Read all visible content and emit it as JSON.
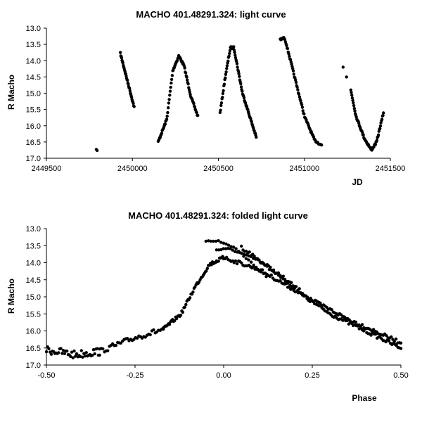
{
  "chart_data": [
    {
      "type": "scatter",
      "title": "MACHO 401.48291.324: light curve",
      "xlabel": "JD",
      "ylabel": "R Macho",
      "xlim": [
        2449500,
        2451500
      ],
      "ylim": [
        13.0,
        17.0
      ],
      "y_inverted": true,
      "grid": false,
      "xticks": [
        2449500,
        2450000,
        2450500,
        2451000,
        2451500
      ],
      "xtick_labels": [
        "2449500",
        "2450000",
        "2450500",
        "2451000",
        "2451500"
      ],
      "yticks": [
        13.0,
        13.5,
        14.0,
        14.5,
        15.0,
        15.5,
        16.0,
        16.5,
        17.0
      ],
      "ytick_labels": [
        "13.0",
        "13.5",
        "14.0",
        "14.5",
        "15.0",
        "15.5",
        "16.0",
        "16.5",
        "17.0"
      ],
      "segments": [
        {
          "kind": "points",
          "pts": [
            [
              2449790,
              16.73
            ],
            [
              2449795,
              16.76
            ]
          ]
        },
        {
          "kind": "poly",
          "start": 2449930,
          "end": 2450010,
          "n": 34,
          "x": [
            2449930,
            2450010
          ],
          "y": [
            13.78,
            15.42
          ]
        },
        {
          "kind": "poly",
          "start": 2450150,
          "end": 2450380,
          "n": 80,
          "x": [
            2450150,
            2450200,
            2450235,
            2450270,
            2450300,
            2450340,
            2450380
          ],
          "y": [
            16.5,
            15.8,
            14.3,
            13.85,
            14.15,
            15.1,
            15.7
          ]
        },
        {
          "kind": "poly",
          "start": 2450510,
          "end": 2450720,
          "n": 78,
          "x": [
            2450510,
            2450540,
            2450570,
            2450590,
            2450640,
            2450720
          ],
          "y": [
            15.6,
            14.5,
            13.6,
            13.6,
            15.0,
            16.35
          ]
        },
        {
          "kind": "poly",
          "start": 2450860,
          "end": 2451100,
          "n": 74,
          "x": [
            2450860,
            2450885,
            2450910,
            2451000,
            2451060,
            2451100
          ],
          "y": [
            13.35,
            13.3,
            13.8,
            15.7,
            16.45,
            16.6
          ]
        },
        {
          "kind": "points",
          "pts": [
            [
              2451225,
              14.2
            ],
            [
              2451245,
              14.5
            ]
          ]
        },
        {
          "kind": "poly",
          "start": 2451270,
          "end": 2451460,
          "n": 66,
          "x": [
            2451270,
            2451300,
            2451350,
            2451390,
            2451420,
            2451460
          ],
          "y": [
            14.9,
            15.7,
            16.4,
            16.75,
            16.5,
            15.6
          ]
        }
      ]
    },
    {
      "type": "scatter",
      "title": "MACHO 401.48291.324: folded light curve",
      "xlabel": "Phase",
      "ylabel": "R Macho",
      "xlim": [
        -0.5,
        0.5
      ],
      "ylim": [
        13.0,
        17.0
      ],
      "y_inverted": true,
      "grid": false,
      "xticks": [
        -0.5,
        -0.25,
        0.0,
        0.25,
        0.5
      ],
      "xtick_labels": [
        "-0.50",
        "-0.25",
        "0.00",
        "0.25",
        "0.50"
      ],
      "yticks": [
        13.0,
        13.5,
        14.0,
        14.5,
        15.0,
        15.5,
        16.0,
        16.5,
        17.0
      ],
      "ytick_labels": [
        "13.0",
        "13.5",
        "14.0",
        "14.5",
        "15.0",
        "15.5",
        "16.0",
        "16.5",
        "17.0"
      ],
      "segments": [
        {
          "kind": "poly",
          "start": -0.5,
          "end": -0.35,
          "n": 45,
          "x": [
            -0.5,
            -0.42,
            -0.35
          ],
          "y": [
            16.55,
            16.7,
            16.6
          ],
          "jitter": 0.12
        },
        {
          "kind": "poly",
          "start": -0.35,
          "end": -0.17,
          "n": 40,
          "x": [
            -0.35,
            -0.25,
            -0.17
          ],
          "y": [
            16.6,
            16.2,
            15.95
          ],
          "jitter": 0.08
        },
        {
          "kind": "poly",
          "start": -0.17,
          "end": 0.0,
          "n": 60,
          "x": [
            -0.17,
            -0.12,
            -0.08,
            -0.04,
            0.0
          ],
          "y": [
            15.95,
            15.5,
            14.7,
            14.05,
            13.85
          ],
          "jitter": 0.05
        },
        {
          "kind": "poly",
          "start": -0.05,
          "end": 0.12,
          "n": 25,
          "x": [
            -0.05,
            -0.02,
            0.03,
            0.12
          ],
          "y": [
            13.35,
            13.35,
            13.55,
            14.4
          ],
          "jitter": 0.03
        },
        {
          "kind": "poly",
          "start": -0.02,
          "end": 0.2,
          "n": 35,
          "x": [
            -0.02,
            0.02,
            0.1,
            0.2
          ],
          "y": [
            13.62,
            13.6,
            13.95,
            14.75
          ],
          "jitter": 0.03
        },
        {
          "kind": "poly",
          "start": 0.0,
          "end": 0.5,
          "n": 120,
          "x": [
            0.0,
            0.1,
            0.2,
            0.3,
            0.4,
            0.5
          ],
          "y": [
            13.85,
            14.2,
            14.8,
            15.5,
            16.0,
            16.5
          ],
          "jitter": 0.05
        },
        {
          "kind": "poly",
          "start": 0.05,
          "end": 0.5,
          "n": 100,
          "x": [
            0.05,
            0.15,
            0.25,
            0.35,
            0.5
          ],
          "y": [
            13.55,
            14.3,
            15.1,
            15.65,
            16.35
          ],
          "jitter": 0.05
        }
      ]
    }
  ]
}
